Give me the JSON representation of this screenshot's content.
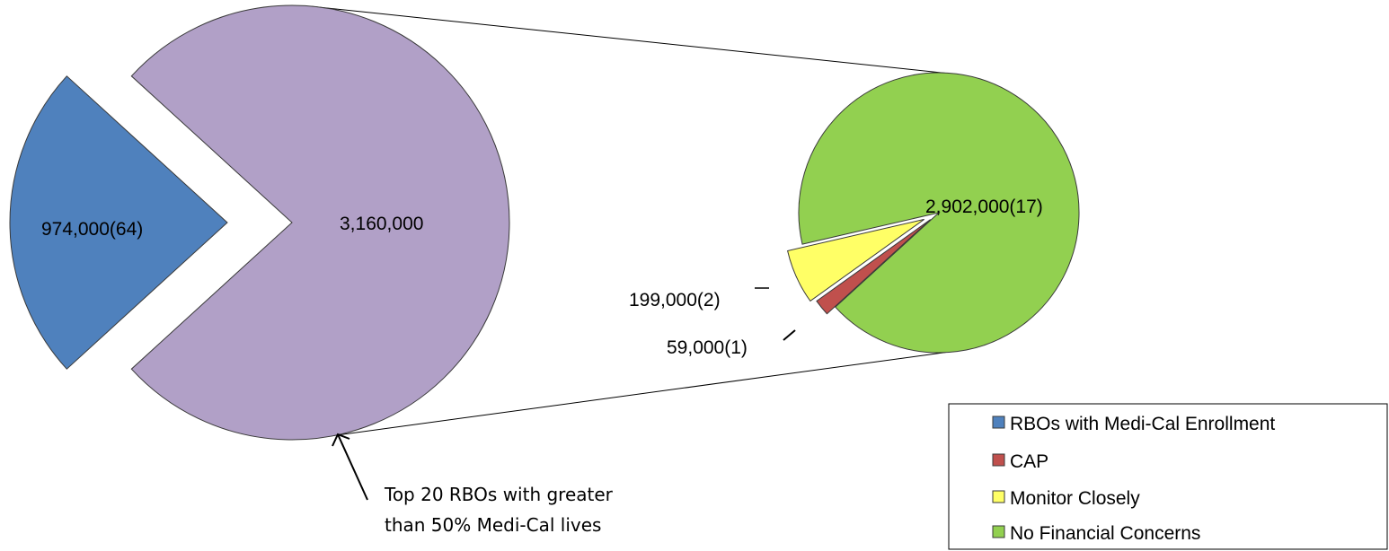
{
  "chart_data": {
    "type": "pie",
    "primary_pie": {
      "slices": [
        {
          "name": "RBOs with Medi-Cal Enrollment",
          "value": 974000,
          "count": 64,
          "label": "974,000(64)",
          "color": "#4F81BD"
        },
        {
          "name": "Top 20 RBOs with greater than 50% Medi-Cal lives",
          "value": 3160000,
          "label": "3,160,000",
          "color": "#B1A0C7"
        }
      ]
    },
    "secondary_pie": {
      "slices": [
        {
          "name": "No Financial Concerns",
          "value": 2902000,
          "count": 17,
          "label": "2,902,000(17)",
          "color": "#92D050"
        },
        {
          "name": "CAP",
          "value": 59000,
          "count": 1,
          "label": "59,000(1)",
          "color": "#C0504D"
        },
        {
          "name": "Monitor Closely",
          "value": 199000,
          "count": 2,
          "label": "199,000(2)",
          "color": "#FFFF66"
        }
      ]
    },
    "annotation": {
      "line1": "Top 20 RBOs with greater",
      "line2": "than 50% Medi-Cal lives"
    },
    "legend": {
      "position": "bottom-right",
      "items": [
        {
          "label": "RBOs with Medi-Cal Enrollment",
          "color": "#4F81BD"
        },
        {
          "label": "CAP",
          "color": "#C0504D"
        },
        {
          "label": "Monitor Closely",
          "color": "#FFFF66"
        },
        {
          "label": "No Financial Concerns",
          "color": "#92D050"
        }
      ]
    }
  }
}
